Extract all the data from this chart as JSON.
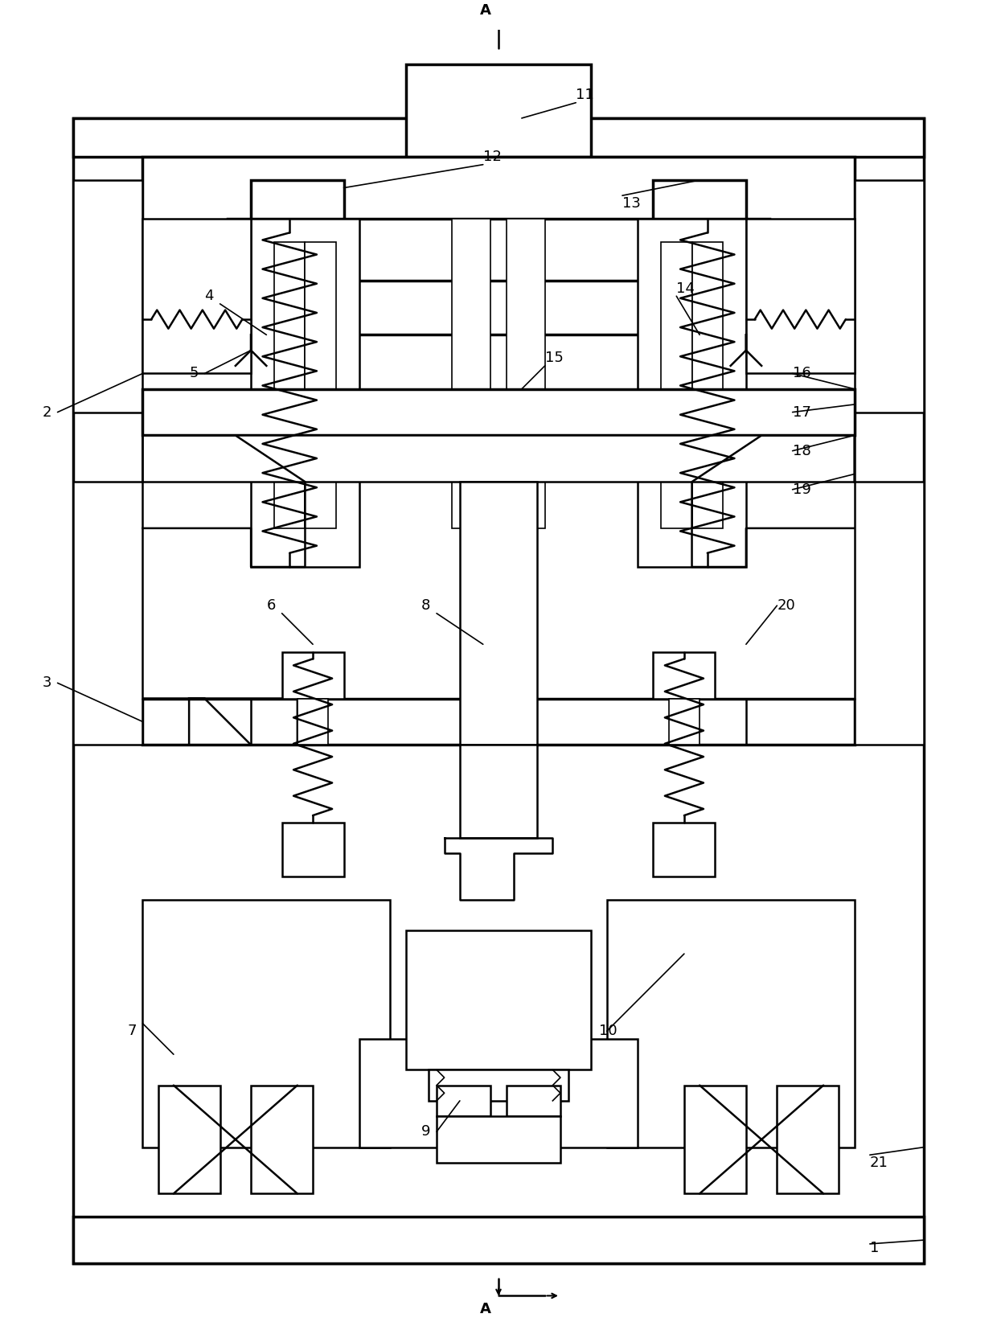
{
  "background_color": "#ffffff",
  "line_color": "#000000",
  "lw_thick": 2.5,
  "lw_med": 1.8,
  "lw_thin": 1.2,
  "fig_width": 12.4,
  "fig_height": 16.44,
  "dpi": 100
}
